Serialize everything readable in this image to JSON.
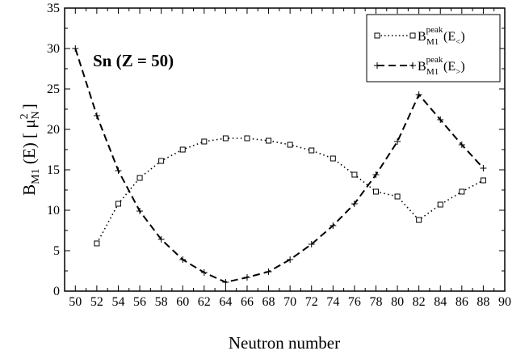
{
  "chart_data": {
    "type": "line",
    "annotation": "Sn (Z = 50)",
    "xlabel": "Neutron number",
    "ylabel": {
      "main": "B",
      "sub": "M1",
      "rest": " (E) [ μ",
      "unit_sub": "N",
      "unit_sup": "2",
      "close": " ]"
    },
    "xlim": [
      49,
      90
    ],
    "ylim": [
      0,
      35
    ],
    "xticks": [
      50,
      52,
      54,
      56,
      58,
      60,
      62,
      64,
      66,
      68,
      70,
      72,
      74,
      76,
      78,
      80,
      82,
      84,
      86,
      88,
      90
    ],
    "yticks": [
      0,
      5,
      10,
      15,
      20,
      25,
      30,
      35
    ],
    "grid": false,
    "legend_position": "top-right",
    "series": [
      {
        "name": "B^peak_M1(E<)",
        "label": {
          "main": "B",
          "sup": "peak",
          "sub": "M1",
          "arg": "(E",
          "arg_sub": "<",
          "close": ")"
        },
        "style": "dotted",
        "marker": "square",
        "x": [
          52,
          54,
          56,
          58,
          60,
          62,
          64,
          66,
          68,
          70,
          72,
          74,
          76,
          78,
          80,
          82,
          84,
          86,
          88
        ],
        "y": [
          5.9,
          10.8,
          14.0,
          16.1,
          17.5,
          18.5,
          18.9,
          18.9,
          18.6,
          18.1,
          17.4,
          16.4,
          14.4,
          12.3,
          11.7,
          8.8,
          10.7,
          12.3,
          13.7
        ]
      },
      {
        "name": "B^peak_M1(E>)",
        "label": {
          "main": "B",
          "sup": "peak",
          "sub": "M1",
          "arg": "(E",
          "arg_sub": ">",
          "close": ")"
        },
        "style": "dashed",
        "marker": "plus",
        "x": [
          50,
          52,
          54,
          56,
          58,
          60,
          62,
          64,
          66,
          68,
          70,
          72,
          74,
          76,
          78,
          80,
          82,
          84,
          86,
          88
        ],
        "y": [
          30.0,
          21.7,
          14.9,
          9.9,
          6.4,
          3.9,
          2.3,
          1.1,
          1.7,
          2.4,
          3.9,
          5.8,
          8.1,
          10.8,
          14.4,
          18.5,
          24.3,
          21.2,
          18.1,
          15.2
        ]
      }
    ]
  }
}
